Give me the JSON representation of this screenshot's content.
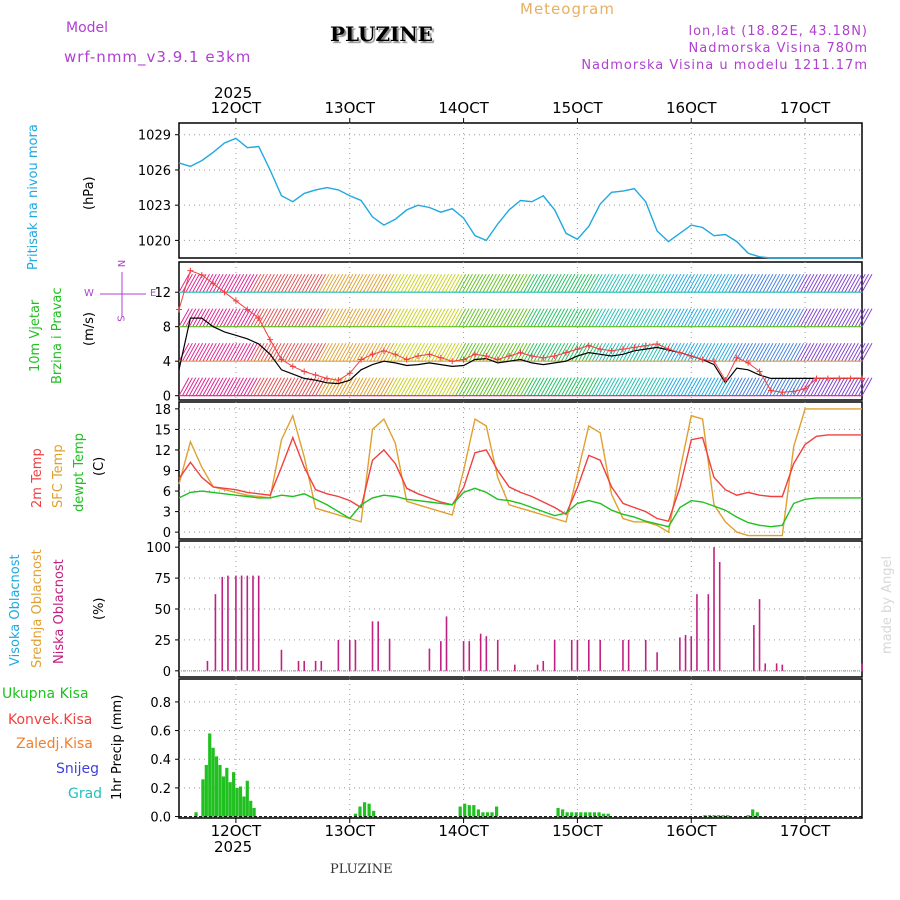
{
  "header": {
    "model_label": "Model",
    "model_name": "wrf-nmm_v3.9.1  e3km",
    "station": "PLUZINE",
    "meteogram": "Meteogram",
    "coords": "lon,lat (18.82E, 43.18N)",
    "altitude": "Nadmorska Visina 780m",
    "model_altitude": "Nadmorska Visina u modelu 1211.17m",
    "year_top": "2025",
    "year_bottom": "2025",
    "footer": "PLUZINE",
    "watermark": "made by Angel"
  },
  "colors": {
    "pressure": "#20a8e0",
    "wind_label": "#20c020",
    "compass": "#b040d0",
    "t2m": "#f04040",
    "sfc": "#e0a030",
    "dewpt": "#20c020",
    "cloud_high": "#20a8e0",
    "cloud_mid": "#e0a030",
    "cloud_low": "#c02080",
    "precip_total": "#20c020",
    "precip_conv": "#f04040",
    "precip_strat": "#f08030",
    "snow": "#4040e0",
    "hail": "#20c0c0",
    "header_purple": "#b040d0",
    "header_orange": "#e8b060"
  },
  "chart_data": [
    {
      "id": "pressure",
      "type": "line",
      "ylabel_lines": [
        "Pritisak na nivou mora",
        "(hPa)"
      ],
      "x_start_day": 11.5,
      "x_end_day": 17.5,
      "ylim": [
        1018.5,
        1030
      ],
      "yticks": [
        1020,
        1023,
        1026,
        1029
      ],
      "x": [
        11.5,
        11.6,
        11.7,
        11.8,
        11.9,
        12.0,
        12.1,
        12.2,
        12.3,
        12.4,
        12.5,
        12.6,
        12.7,
        12.8,
        12.9,
        13.0,
        13.1,
        13.2,
        13.3,
        13.4,
        13.5,
        13.6,
        13.7,
        13.8,
        13.9,
        14.0,
        14.1,
        14.2,
        14.3,
        14.4,
        14.5,
        14.6,
        14.7,
        14.8,
        14.9,
        15.0,
        15.1,
        15.2,
        15.3,
        15.4,
        15.5,
        15.6,
        15.7,
        15.8,
        15.9,
        16.0,
        16.1,
        16.2,
        16.3,
        16.4,
        16.5,
        16.6,
        16.7,
        16.8,
        16.9,
        17.0,
        17.1,
        17.2,
        17.3,
        17.4,
        17.5
      ],
      "values": [
        1026.6,
        1026.3,
        1026.8,
        1027.5,
        1028.3,
        1028.7,
        1027.9,
        1028.0,
        1026.0,
        1023.8,
        1023.3,
        1024.0,
        1024.3,
        1024.5,
        1024.3,
        1023.8,
        1023.4,
        1022.0,
        1021.3,
        1021.8,
        1022.6,
        1023.0,
        1022.8,
        1022.4,
        1022.7,
        1021.9,
        1020.4,
        1020.0,
        1021.4,
        1022.6,
        1023.4,
        1023.3,
        1023.8,
        1022.6,
        1020.6,
        1020.1,
        1021.2,
        1023.1,
        1024.1,
        1024.2,
        1024.4,
        1023.3,
        1020.8,
        1019.9,
        1020.6,
        1021.3,
        1021.1,
        1020.4,
        1020.5,
        1019.9,
        1018.9,
        1018.6,
        1018.5,
        1018.5,
        1018.5,
        1018.5,
        1018.5,
        1018.5,
        1018.5,
        1018.5,
        1018.5
      ]
    },
    {
      "id": "wind",
      "type": "line",
      "ylabel_lines": [
        "10m Vjetar",
        "Brzina i Pravac",
        "(m/s)"
      ],
      "compass": {
        "n": "N",
        "s": "S",
        "e": "E",
        "w": "W"
      },
      "ylim": [
        -0.5,
        15.5
      ],
      "yticks": [
        0,
        4,
        8,
        12
      ],
      "barb_levels": [
        0,
        4,
        8,
        12
      ],
      "speed_x": [
        11.5,
        11.6,
        11.7,
        11.8,
        11.9,
        12.0,
        12.1,
        12.2,
        12.3,
        12.4,
        12.5,
        12.6,
        12.7,
        12.8,
        12.9,
        13.0,
        13.1,
        13.2,
        13.3,
        13.4,
        13.5,
        13.6,
        13.7,
        13.8,
        13.9,
        14.0,
        14.1,
        14.2,
        14.3,
        14.4,
        14.5,
        14.6,
        14.7,
        14.8,
        14.9,
        15.0,
        15.1,
        15.2,
        15.3,
        15.4,
        15.5,
        15.6,
        15.7,
        15.8,
        15.9,
        16.0,
        16.1,
        16.2,
        16.3,
        16.4,
        16.5,
        16.6,
        16.7,
        16.8,
        16.9,
        17.0,
        17.1,
        17.2,
        17.3,
        17.4,
        17.5
      ],
      "speed": [
        3.0,
        9.0,
        9.0,
        8.0,
        7.4,
        7.0,
        6.6,
        6.0,
        4.8,
        3.0,
        2.5,
        2.0,
        1.8,
        1.5,
        1.4,
        1.8,
        3.0,
        3.6,
        4.0,
        3.8,
        3.5,
        3.6,
        3.8,
        3.6,
        3.4,
        3.5,
        4.2,
        4.3,
        3.8,
        4.0,
        4.2,
        3.8,
        3.6,
        3.8,
        4.0,
        4.6,
        5.0,
        4.8,
        4.6,
        4.8,
        5.2,
        5.4,
        5.6,
        5.3,
        5.0,
        4.6,
        4.2,
        3.6,
        1.5,
        3.2,
        3.0,
        2.4,
        2.0,
        2.0,
        2.0,
        2.0,
        2.0,
        2.0,
        2.0,
        2.0,
        2.0
      ],
      "gust": [
        10.0,
        14.5,
        14.0,
        13.0,
        12.0,
        11.0,
        10.0,
        9.0,
        6.5,
        4.2,
        3.4,
        2.8,
        2.4,
        2.0,
        1.8,
        2.6,
        4.2,
        4.8,
        5.2,
        4.8,
        4.2,
        4.6,
        4.8,
        4.4,
        4.0,
        4.2,
        4.8,
        4.6,
        4.2,
        4.6,
        5.0,
        4.6,
        4.4,
        4.6,
        5.0,
        5.4,
        5.8,
        5.4,
        5.2,
        5.4,
        5.6,
        5.8,
        6.0,
        5.4,
        5.0,
        4.6,
        4.2,
        4.0,
        1.8,
        4.4,
        3.8,
        2.8,
        0.6,
        0.4,
        0.5,
        0.8,
        2.0,
        2.0,
        2.0,
        2.0,
        2.0
      ]
    },
    {
      "id": "temperature",
      "type": "line",
      "ylabel_lines": [
        "2m Temp",
        "SFC Temp",
        "dewpt Temp",
        "(C)"
      ],
      "ylim": [
        -1.0,
        19.0
      ],
      "yticks": [
        0,
        3,
        6,
        9,
        12,
        15,
        18
      ],
      "x": [
        11.5,
        11.6,
        11.7,
        11.8,
        11.9,
        12.0,
        12.1,
        12.2,
        12.3,
        12.4,
        12.5,
        12.6,
        12.7,
        12.8,
        12.9,
        13.0,
        13.1,
        13.2,
        13.3,
        13.4,
        13.5,
        13.6,
        13.7,
        13.8,
        13.9,
        14.0,
        14.1,
        14.2,
        14.3,
        14.4,
        14.5,
        14.6,
        14.7,
        14.8,
        14.9,
        15.0,
        15.1,
        15.2,
        15.3,
        15.4,
        15.5,
        15.6,
        15.7,
        15.8,
        15.9,
        16.0,
        16.1,
        16.2,
        16.3,
        16.4,
        16.5,
        16.6,
        16.7,
        16.8,
        16.9,
        17.0,
        17.1,
        17.2,
        17.3,
        17.4,
        17.5
      ],
      "t2m": [
        7.8,
        10.2,
        8.0,
        6.6,
        6.4,
        6.2,
        5.8,
        5.6,
        5.4,
        9.5,
        13.8,
        9.5,
        6.2,
        5.6,
        5.2,
        4.6,
        3.6,
        10.5,
        12.0,
        10.0,
        6.4,
        5.6,
        5.0,
        4.4,
        4.0,
        6.5,
        11.6,
        12.0,
        9.0,
        6.6,
        5.8,
        5.2,
        4.4,
        3.6,
        2.6,
        6.5,
        11.2,
        10.5,
        6.6,
        4.2,
        3.6,
        3.0,
        2.0,
        1.6,
        6.5,
        13.5,
        13.8,
        8.0,
        6.2,
        5.4,
        5.8,
        5.4,
        5.2,
        5.2,
        10.0,
        12.8,
        14.0,
        14.2,
        14.2,
        14.2,
        14.2
      ],
      "sfc": [
        7.0,
        13.2,
        9.5,
        6.6,
        6.2,
        5.8,
        5.4,
        5.2,
        5.0,
        13.5,
        17.0,
        11.0,
        3.5,
        3.0,
        2.5,
        2.0,
        1.5,
        15.0,
        16.5,
        13.0,
        4.5,
        4.0,
        3.5,
        3.0,
        2.5,
        9.0,
        16.5,
        15.5,
        8.0,
        4.0,
        3.5,
        3.0,
        2.5,
        2.0,
        1.5,
        8.5,
        15.5,
        14.5,
        5.5,
        2.0,
        1.5,
        1.5,
        1.0,
        0.0,
        9.0,
        17.0,
        16.5,
        4.0,
        1.5,
        0.0,
        -0.5,
        -0.5,
        -0.5,
        -0.5,
        12.5,
        18.0,
        18.0,
        18.0,
        18.0,
        18.0,
        18.0
      ],
      "dewpt": [
        5.0,
        5.8,
        6.0,
        5.8,
        5.6,
        5.4,
        5.2,
        5.0,
        5.0,
        5.4,
        5.2,
        5.6,
        4.8,
        4.0,
        3.0,
        2.0,
        4.0,
        5.0,
        5.4,
        5.2,
        4.8,
        4.6,
        4.4,
        4.2,
        4.0,
        5.8,
        6.4,
        5.8,
        4.8,
        4.6,
        4.2,
        3.6,
        3.0,
        2.4,
        2.8,
        4.2,
        4.6,
        4.2,
        3.2,
        2.6,
        2.2,
        1.6,
        1.2,
        0.8,
        3.6,
        4.6,
        4.4,
        3.8,
        3.2,
        2.2,
        1.4,
        1.0,
        0.8,
        1.0,
        4.2,
        4.8,
        5.0,
        5.0,
        5.0,
        5.0,
        5.0
      ]
    },
    {
      "id": "cloud",
      "type": "bar",
      "ylabel_lines": [
        "Visoka Oblacnost",
        "Srednja Oblacnost",
        "Niska Oblacnost",
        "(%)"
      ],
      "ylim": [
        -5,
        105
      ],
      "yticks": [
        0,
        25,
        50,
        75,
        100
      ],
      "x": [
        11.75,
        11.82,
        11.88,
        11.93,
        12.0,
        12.05,
        12.1,
        12.15,
        12.2,
        12.4,
        12.55,
        12.6,
        12.7,
        12.75,
        12.9,
        13.0,
        13.05,
        13.2,
        13.25,
        13.35,
        13.7,
        13.8,
        13.85,
        14.0,
        14.05,
        14.15,
        14.2,
        14.3,
        14.45,
        14.65,
        14.7,
        14.8,
        14.95,
        15.0,
        15.1,
        15.2,
        15.4,
        15.45,
        15.6,
        15.7,
        15.9,
        15.95,
        16.0,
        16.05,
        16.15,
        16.2,
        16.25,
        16.55,
        16.6,
        16.65,
        16.75,
        16.8,
        17.5
      ],
      "values": [
        8,
        62,
        76,
        77,
        77,
        77,
        77,
        77,
        77,
        17,
        8,
        8,
        8,
        8,
        25,
        25,
        25,
        40,
        40,
        26,
        18,
        24,
        44,
        24,
        24,
        30,
        28,
        25,
        5,
        5,
        8,
        25,
        25,
        25,
        25,
        25,
        25,
        25,
        25,
        15,
        27,
        29,
        28,
        62,
        62,
        100,
        88,
        37,
        58,
        6,
        6,
        5,
        6
      ]
    },
    {
      "id": "precip",
      "type": "bar",
      "ylabel_lines": [
        "1hr Precip (mm)"
      ],
      "legend": [
        "Ukupna Kisa",
        "Konvek.Kisa",
        "Zaledj.Kisa",
        "Snijeg",
        "Grad"
      ],
      "ylim": [
        -0.01,
        0.96
      ],
      "yticks": [
        0,
        0.2,
        0.4,
        0.6,
        0.8
      ],
      "x": [
        11.65,
        11.71,
        11.74,
        11.77,
        11.8,
        11.83,
        11.86,
        11.89,
        11.92,
        11.95,
        11.98,
        12.01,
        12.04,
        12.07,
        12.1,
        12.13,
        12.16,
        13.05,
        13.09,
        13.13,
        13.17,
        13.21,
        13.97,
        14.01,
        14.05,
        14.09,
        14.13,
        14.17,
        14.21,
        14.25,
        14.29,
        14.83,
        14.87,
        14.91,
        14.95,
        14.99,
        15.03,
        15.07,
        15.11,
        15.15,
        15.19,
        15.23,
        15.27,
        16.12,
        16.16,
        16.2,
        16.24,
        16.28,
        16.32,
        16.5,
        16.54,
        16.58
      ],
      "values": [
        0.03,
        0.26,
        0.36,
        0.58,
        0.48,
        0.42,
        0.36,
        0.28,
        0.34,
        0.24,
        0.31,
        0.2,
        0.21,
        0.14,
        0.25,
        0.11,
        0.06,
        0.02,
        0.07,
        0.1,
        0.09,
        0.04,
        0.07,
        0.09,
        0.08,
        0.08,
        0.05,
        0.03,
        0.03,
        0.03,
        0.07,
        0.06,
        0.05,
        0.03,
        0.03,
        0.03,
        0.03,
        0.03,
        0.03,
        0.03,
        0.03,
        0.02,
        0.02,
        0.01,
        0.01,
        0.01,
        0.01,
        0.01,
        0.01,
        0.01,
        0.05,
        0.03
      ]
    }
  ],
  "x_ticks": [
    {
      "day": 12,
      "label": "12OCT"
    },
    {
      "day": 13,
      "label": "13OCT"
    },
    {
      "day": 14,
      "label": "14OCT"
    },
    {
      "day": 15,
      "label": "15OCT"
    },
    {
      "day": 16,
      "label": "16OCT"
    },
    {
      "day": 17,
      "label": "17OCT"
    }
  ]
}
